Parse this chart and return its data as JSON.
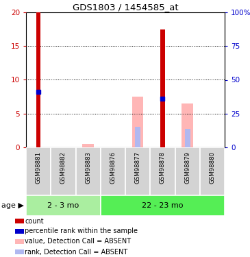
{
  "title": "GDS1803 / 1454585_at",
  "samples": [
    "GSM98881",
    "GSM98882",
    "GSM98883",
    "GSM98876",
    "GSM98877",
    "GSM98878",
    "GSM98879",
    "GSM98880"
  ],
  "groups": [
    {
      "label": "2 - 3 mo",
      "indices": [
        0,
        1,
        2
      ]
    },
    {
      "label": "22 - 23 mo",
      "indices": [
        3,
        4,
        5,
        6,
        7
      ]
    }
  ],
  "count_values": [
    20,
    0,
    0,
    0,
    0,
    17.5,
    0,
    0
  ],
  "rank_values": [
    8.2,
    0,
    0,
    0,
    0,
    7.2,
    0,
    0
  ],
  "absent_value": [
    0,
    0,
    0.5,
    0,
    7.5,
    0,
    6.5,
    0
  ],
  "absent_rank": [
    0,
    0,
    0,
    0,
    3.0,
    0,
    2.7,
    0
  ],
  "ylim": [
    0,
    20
  ],
  "yticks": [
    0,
    5,
    10,
    15,
    20
  ],
  "y2ticks": [
    0,
    25,
    50,
    75,
    100
  ],
  "y2labels": [
    "0",
    "25",
    "50",
    "75",
    "100%"
  ],
  "count_color": "#cc0000",
  "rank_color": "#0000cc",
  "absent_value_color": "#ffb6b6",
  "absent_rank_color": "#b0b8f0",
  "grid_color": "#000000",
  "bg_sample_label": "#d3d3d3",
  "group_color_1": "#aaeea0",
  "group_color_2": "#55ee55",
  "legend": [
    {
      "color": "#cc0000",
      "label": "count"
    },
    {
      "color": "#0000cc",
      "label": "percentile rank within the sample"
    },
    {
      "color": "#ffb6b6",
      "label": "value, Detection Call = ABSENT"
    },
    {
      "color": "#b0b8f0",
      "label": "rank, Detection Call = ABSENT"
    }
  ]
}
